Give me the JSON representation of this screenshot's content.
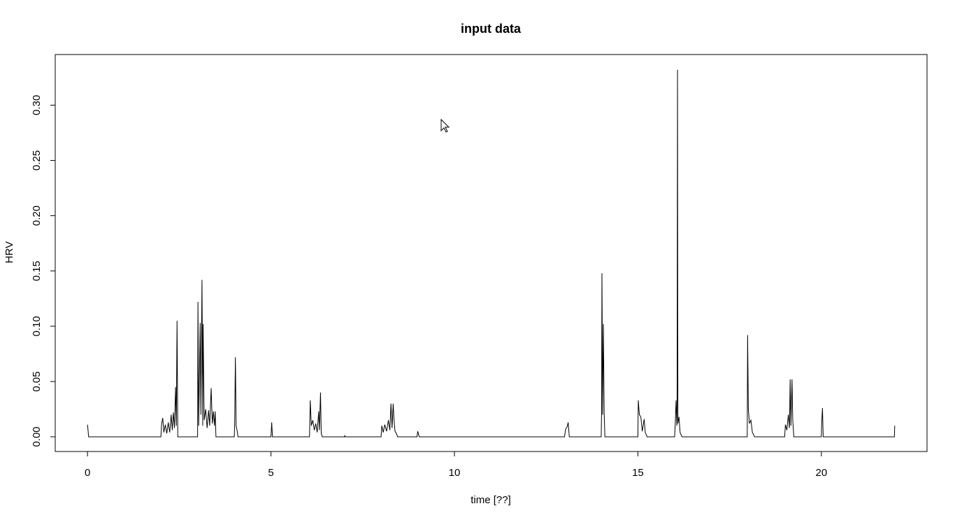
{
  "chart_data": {
    "type": "line",
    "title": "input data",
    "x_label": "time [??]",
    "y_label": "HRV",
    "x": [
      0,
      0.03,
      2.0,
      2.02,
      2.05,
      2.08,
      2.12,
      2.16,
      2.2,
      2.24,
      2.28,
      2.31,
      2.34,
      2.37,
      2.4,
      2.42,
      2.44,
      2.46,
      3.0,
      3.01,
      3.03,
      3.07,
      3.09,
      3.12,
      3.14,
      3.15,
      3.18,
      3.22,
      3.26,
      3.3,
      3.33,
      3.37,
      3.4,
      3.43,
      3.46,
      3.48,
      3.5,
      4.0,
      4.01,
      4.03,
      4.05,
      4.08,
      4.1,
      5.0,
      5.02,
      5.04,
      6.05,
      6.07,
      6.1,
      6.14,
      6.18,
      6.22,
      6.26,
      6.3,
      6.32,
      6.35,
      6.37,
      6.4,
      7.0,
      7.01,
      7.02,
      8.0,
      8.02,
      8.06,
      8.1,
      8.15,
      8.2,
      8.24,
      8.27,
      8.3,
      8.33,
      8.35,
      8.38,
      8.42,
      8.45,
      8.98,
      9.0,
      9.04,
      13.0,
      13.03,
      13.07,
      13.1,
      13.13,
      14.0,
      14.01,
      14.02,
      14.04,
      14.06,
      14.08,
      14.1,
      15.0,
      15.01,
      15.04,
      15.08,
      15.12,
      15.17,
      15.2,
      15.25,
      16.0,
      16.02,
      16.04,
      16.06,
      16.07,
      16.08,
      16.09,
      16.12,
      16.15,
      16.2,
      17.98,
      17.99,
      18.01,
      18.04,
      18.08,
      18.12,
      18.18,
      19.0,
      19.02,
      19.06,
      19.1,
      19.13,
      19.15,
      19.17,
      19.2,
      19.22,
      19.25,
      20.0,
      20.01,
      20.03,
      20.05,
      21.99,
      22.0
    ],
    "series": [
      {
        "name": "HRV",
        "color": "#000000",
        "values": [
          0.011,
          0,
          0,
          0.012,
          0.017,
          0.004,
          0.011,
          0.003,
          0.013,
          0.004,
          0.02,
          0.006,
          0.022,
          0.008,
          0.045,
          0.01,
          0.105,
          0,
          0,
          0.122,
          0.01,
          0.103,
          0.02,
          0.142,
          0.01,
          0.102,
          0.015,
          0.025,
          0.008,
          0.024,
          0.01,
          0.044,
          0.012,
          0.023,
          0.01,
          0.023,
          0,
          0,
          0.011,
          0.072,
          0.01,
          0.005,
          0,
          0,
          0.013,
          0,
          0,
          0.033,
          0.01,
          0.015,
          0.006,
          0.012,
          0.004,
          0.023,
          0.006,
          0.04,
          0.003,
          0,
          0,
          0.001,
          0,
          0,
          0.01,
          0.004,
          0.011,
          0.005,
          0.015,
          0.006,
          0.03,
          0.008,
          0.03,
          0.017,
          0.005,
          0.003,
          0,
          0,
          0.005,
          0,
          0,
          0.007,
          0.009,
          0.013,
          0,
          0,
          0.022,
          0.148,
          0.02,
          0.102,
          0.022,
          0,
          0,
          0.033,
          0.02,
          0.018,
          0.005,
          0.016,
          0.004,
          0,
          0,
          0.013,
          0.033,
          0.01,
          0.04,
          0.332,
          0.012,
          0.018,
          0.004,
          0,
          0,
          0.092,
          0.025,
          0.012,
          0.015,
          0.004,
          0,
          0,
          0.011,
          0.006,
          0.02,
          0.008,
          0.052,
          0.01,
          0.052,
          0.015,
          0,
          0,
          0.013,
          0.026,
          0,
          0,
          0.01
        ]
      }
    ],
    "xlim": [
      -0.88,
      22.88
    ],
    "xticks": [
      0,
      5,
      10,
      15,
      20
    ],
    "ylim": [
      -0.0133,
      0.3458
    ],
    "yticks": [
      {
        "value": 0,
        "label": "0.00"
      },
      {
        "value": 0.05,
        "label": "0.05"
      },
      {
        "value": 0.1,
        "label": "0.10"
      },
      {
        "value": 0.15,
        "label": "0.15"
      },
      {
        "value": 0.2,
        "label": "0.20"
      },
      {
        "value": 0.25,
        "label": "0.25"
      },
      {
        "value": 0.3,
        "label": "0.30"
      }
    ],
    "grid": false
  }
}
